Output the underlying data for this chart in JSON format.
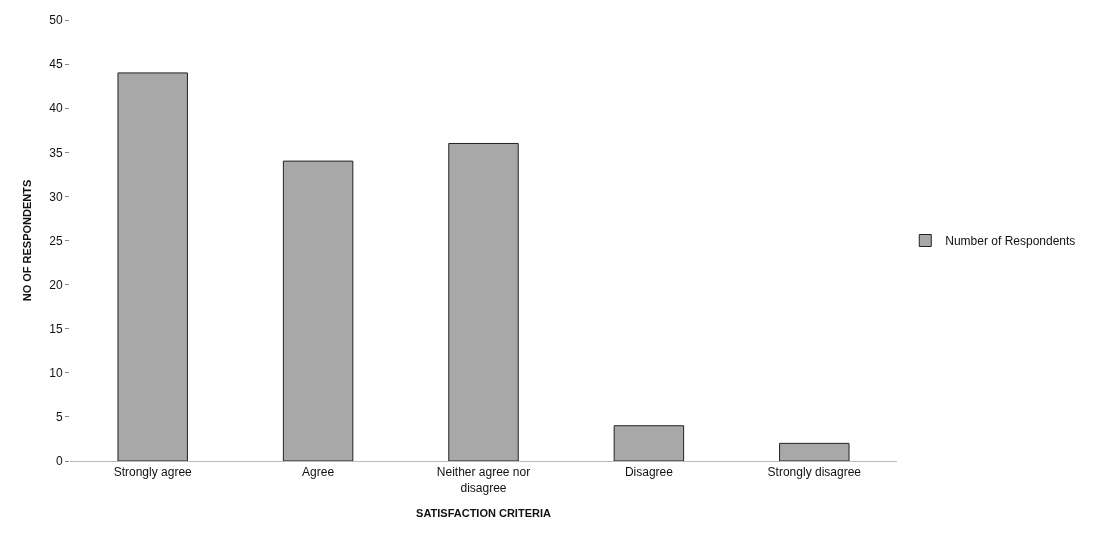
{
  "chart_data": {
    "type": "bar",
    "xlabel": "SATISFACTION CRITERIA",
    "ylabel": "NO OF RESPONDENTS",
    "categories": [
      "Strongly agree",
      "Agree",
      "Neither agree nor disagree",
      "Disagree",
      "Strongly disagree"
    ],
    "series": [
      {
        "name": "Number of Respondents",
        "color": "#a8a8a8",
        "values": [
          44,
          34,
          36,
          4,
          2
        ]
      }
    ],
    "ylim": [
      0,
      50
    ],
    "yticks": [
      0,
      5,
      10,
      15,
      20,
      25,
      30,
      35,
      40,
      45,
      50
    ],
    "legend": "right"
  }
}
